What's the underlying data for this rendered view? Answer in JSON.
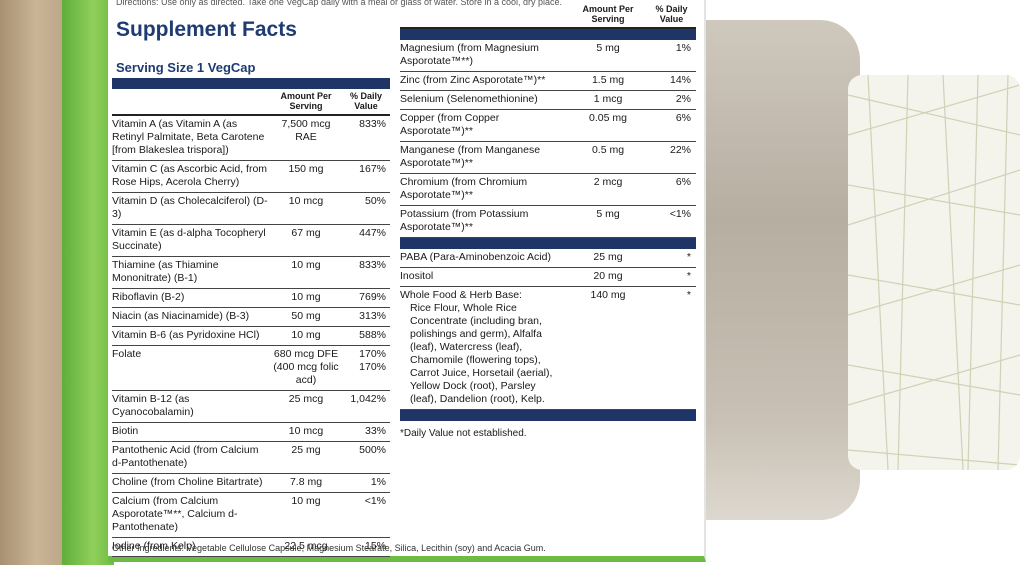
{
  "directions": "Directions: Use only as directed. Take one VegCap daily with a meal or glass of water. Store in a cool, dry place.",
  "title": "Supplement Facts",
  "serving_size": "Serving Size 1 VegCap",
  "left_headers": {
    "amount": "Amount Per Serving",
    "daily_value": "% Daily Value"
  },
  "left_rows": [
    {
      "name": "Vitamin A (as Vitamin A (as Retinyl Palmitate, Beta Carotene [from Blakeslea trispora])",
      "amount": "7,500 mcg RAE",
      "daily_value": "833%"
    },
    {
      "name": "Vitamin C (as Ascorbic Acid, from Rose Hips, Acerola Cherry)",
      "amount": "150 mg",
      "daily_value": "167%"
    },
    {
      "name": "Vitamin D (as Cholecalciferol) (D-3)",
      "amount": "10 mcg",
      "daily_value": "50%"
    },
    {
      "name": "Vitamin E (as d-alpha Tocopheryl Succinate)",
      "amount": "67 mg",
      "daily_value": "447%"
    },
    {
      "name": "Thiamine (as Thiamine Mononitrate) (B-1)",
      "amount": "10 mg",
      "daily_value": "833%"
    },
    {
      "name": "Riboflavin (B-2)",
      "amount": "10 mg",
      "daily_value": "769%"
    },
    {
      "name": "Niacin (as Niacinamide) (B-3)",
      "amount": "50 mg",
      "daily_value": "313%"
    },
    {
      "name": "Vitamin B-6 (as Pyridoxine HCl)",
      "amount": "10 mg",
      "daily_value": "588%"
    },
    {
      "name": "Folate",
      "amount": [
        "680 mcg DFE",
        "(400 mcg folic acd)"
      ],
      "daily_value": [
        "170%",
        "170%"
      ]
    },
    {
      "name": "Vitamin B-12 (as Cyanocobalamin)",
      "amount": "25 mcg",
      "daily_value": "1,042%"
    },
    {
      "name": "Biotin",
      "amount": "10 mcg",
      "daily_value": "33%"
    },
    {
      "name": "Pantothenic Acid (from Calcium d-Pantothenate)",
      "amount": "25 mg",
      "daily_value": "500%"
    },
    {
      "name": "Choline (from Choline Bitartrate)",
      "amount": "7.8 mg",
      "daily_value": "1%"
    },
    {
      "name": "Calcium (from Calcium Asporotate™**, Calcium d-Pantothenate)",
      "amount": "10 mg",
      "daily_value": "<1%"
    },
    {
      "name": "Iodine (from Kelp)",
      "amount": "22.5 mcg",
      "daily_value": "15%"
    }
  ],
  "other_ingredients": "Other Ingredients: Vegetable Cellulose Capsule, Magnesium Stearate, Silica, Lecithin (soy) and Acacia Gum.",
  "right_headers": {
    "amount": "Amount Per Serving",
    "daily_value": "% Daily Value"
  },
  "right_sections": [
    [
      {
        "name": "Magnesium (from Magnesium Asporotate™**)",
        "amount": "5 mg",
        "daily_value": "1%"
      },
      {
        "name": "Zinc (from Zinc Asporotate™)**",
        "amount": "1.5 mg",
        "daily_value": "14%"
      },
      {
        "name": "Selenium (Selenomethionine)",
        "amount": "1 mcg",
        "daily_value": "2%"
      },
      {
        "name": "Copper (from Copper Asporotate™)**",
        "amount": "0.05 mg",
        "daily_value": "6%"
      },
      {
        "name": "Manganese (from Manganese Asporotate™)**",
        "amount": "0.5 mg",
        "daily_value": "22%"
      },
      {
        "name": "Chromium (from Chromium Asporotate™)**",
        "amount": "2 mcg",
        "daily_value": "6%"
      },
      {
        "name": "Potassium (from Potassium Asporotate™)**",
        "amount": "5 mg",
        "daily_value": "<1%"
      }
    ],
    [
      {
        "name": "PABA (Para-Aminobenzoic Acid)",
        "amount": "25 mg",
        "daily_value": "*"
      },
      {
        "name": "Inositol",
        "amount": "20 mg",
        "daily_value": "*"
      },
      {
        "name": "Whole Food & Herb Base:",
        "amount": "140 mg",
        "daily_value": "*",
        "details": "Rice Flour, Whole Rice Concentrate (including bran, polishings and germ), Alfalfa (leaf), Watercress (leaf), Chamomile (flowering tops), Carrot Juice, Horsetail (aerial), Yellow Dock (root), Parsley (leaf), Dandelion (root), Kelp."
      }
    ]
  ],
  "footnote": "*Daily Value not established."
}
